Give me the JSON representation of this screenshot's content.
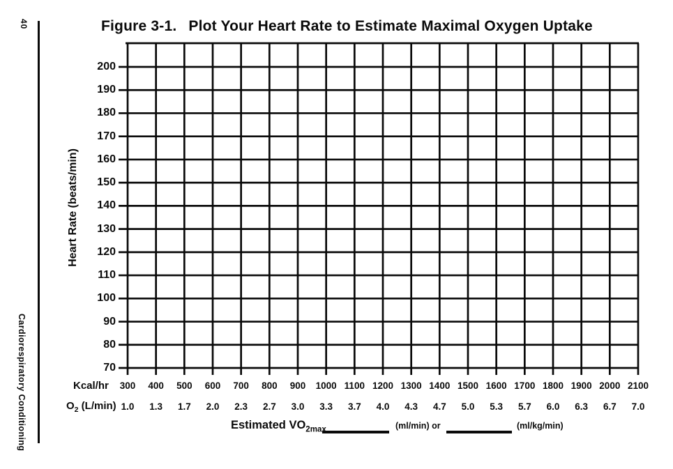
{
  "margin": {
    "page_number": "40",
    "chapter_title": "Cardiorespiratory Conditioning"
  },
  "figure": {
    "title_label": "Figure 3-1.",
    "title_text": "Plot Your Heart Rate to Estimate Maximal Oxygen Uptake"
  },
  "footer": {
    "label_prefix": "Estimated VO",
    "label_subscript": "2max",
    "blank1": "",
    "unit1": "(ml/min) or",
    "blank2": "",
    "unit2": "(ml/kg/min)"
  },
  "chart_data": {
    "type": "scatter",
    "title": "Figure 3-1. Plot Your Heart Rate to Estimate Maximal Oxygen Uptake",
    "note": "blank worksheet grid — no data points plotted",
    "grid": true,
    "ylabel": "Heart Rate (beats/min)",
    "ylim": [
      70,
      210
    ],
    "y_ticks": [
      "200",
      "190",
      "180",
      "170",
      "160",
      "150",
      "140",
      "130",
      "120",
      "110",
      "100",
      "90",
      "80",
      "70"
    ],
    "x_axis_rows": [
      {
        "label": "Kcal/hr",
        "label_prefix": "Kcal/hr",
        "label_subscript": "",
        "label_rest": "",
        "ticks": [
          "300",
          "400",
          "500",
          "600",
          "700",
          "800",
          "900",
          "1000",
          "1100",
          "1200",
          "1300",
          "1400",
          "1500",
          "1600",
          "1700",
          "1800",
          "1900",
          "2000",
          "2100"
        ]
      },
      {
        "label": "O2 (L/min)",
        "label_prefix": "O",
        "label_subscript": "2",
        "label_rest": " (L/min)",
        "ticks": [
          "1.0",
          "1.3",
          "1.7",
          "2.0",
          "2.3",
          "2.7",
          "3.0",
          "3.3",
          "3.7",
          "4.0",
          "4.3",
          "4.7",
          "5.0",
          "5.3",
          "5.7",
          "6.0",
          "6.3",
          "6.7",
          "7.0"
        ]
      }
    ],
    "series": []
  },
  "colors": {
    "ink": "#0a0a0a",
    "paper": "#ffffff"
  }
}
